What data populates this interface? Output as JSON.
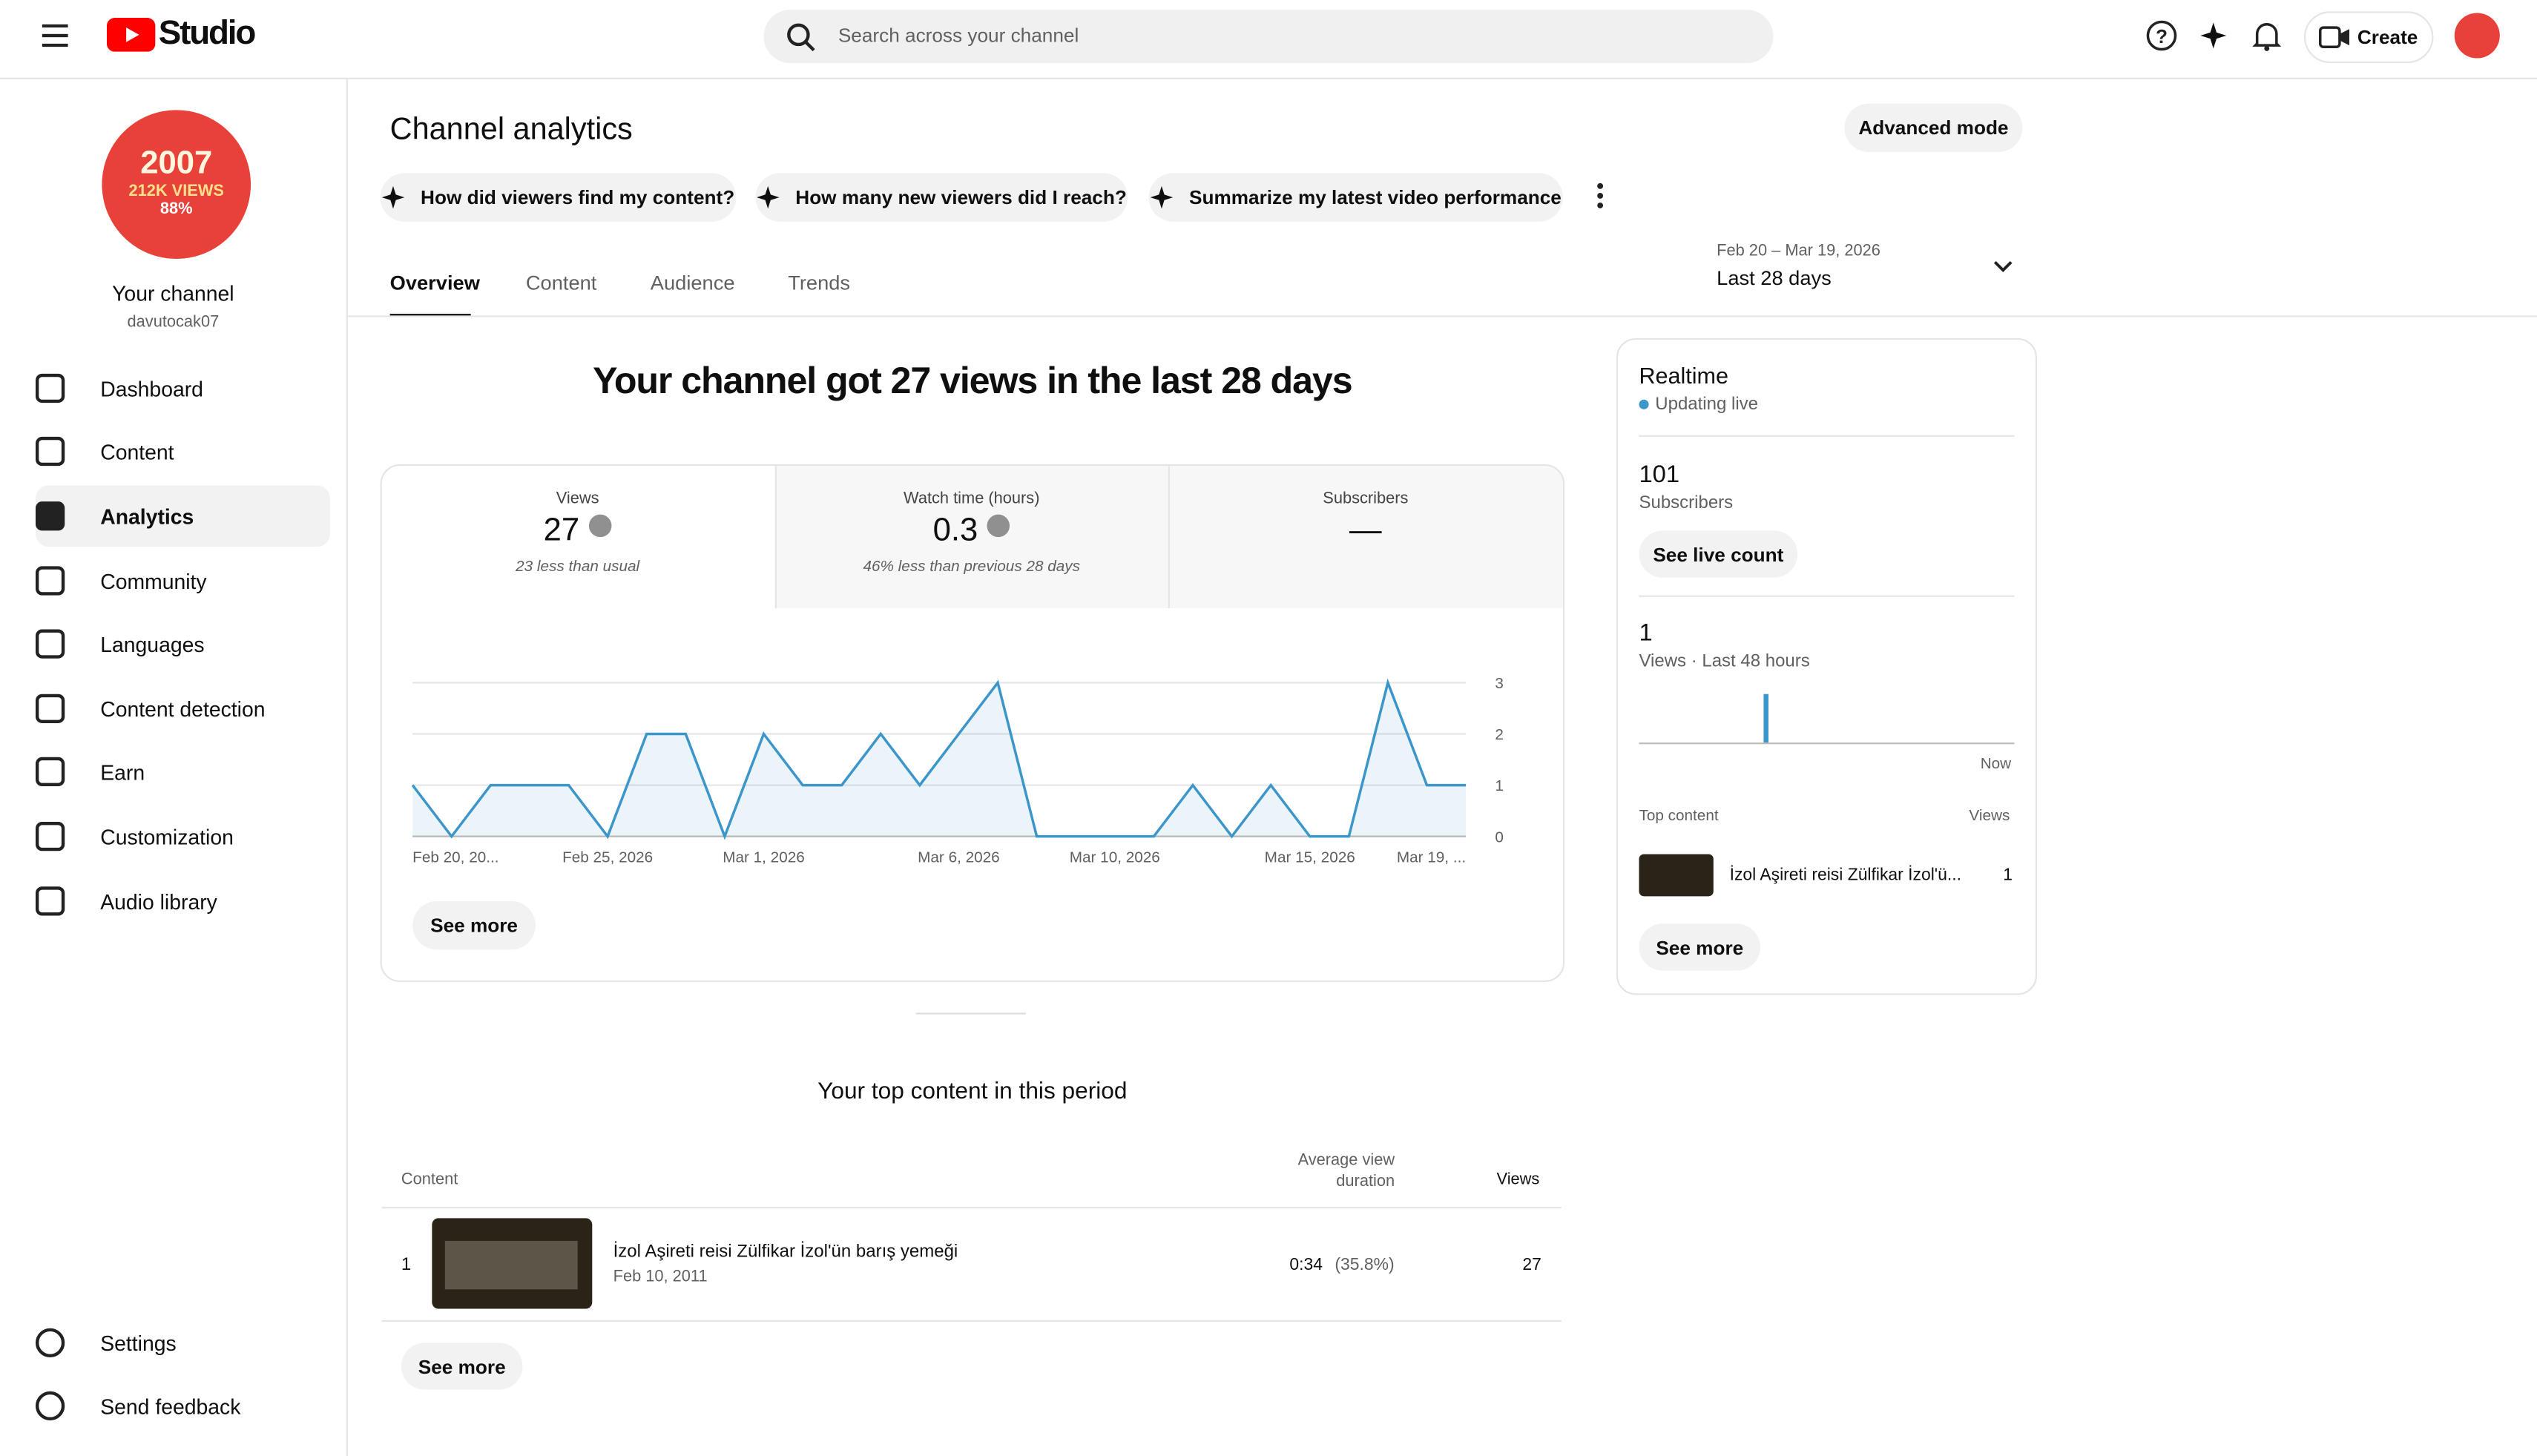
{
  "header": {
    "logo": "Studio",
    "search_placeholder": "Search across your channel",
    "create": "Create"
  },
  "channel": {
    "avatar_line1": "2007",
    "avatar_line2": "212K VIEWS",
    "avatar_line3": "88%",
    "name": "Your channel",
    "handle": "davutocak07"
  },
  "nav": [
    "Dashboard",
    "Content",
    "Analytics",
    "Community",
    "Languages",
    "Content detection",
    "Earn",
    "Customization",
    "Audio library"
  ],
  "nav_footer": [
    "Settings",
    "Send feedback"
  ],
  "page": {
    "title": "Channel analytics",
    "advanced": "Advanced mode",
    "prompts": [
      "How did viewers find my content?",
      "How many new viewers did I reach?",
      "Summarize my latest video performance"
    ],
    "tabs": [
      "Overview",
      "Content",
      "Audience",
      "Trends"
    ],
    "date_range": "Feb 20 – Mar 19, 2026",
    "period": "Last 28 days"
  },
  "summary": {
    "headline": "Your channel got 27 views in the last 28 days",
    "metrics": [
      {
        "label": "Views",
        "value": "27",
        "note": "23 less than usual"
      },
      {
        "label": "Watch time (hours)",
        "value": "0.3",
        "note": "46% less than previous 28 days"
      },
      {
        "label": "Subscribers",
        "value": "—"
      }
    ],
    "see_more": "See more"
  },
  "chart_data": {
    "type": "line",
    "categories": [
      "Feb 20, 20...",
      null,
      null,
      null,
      null,
      "Feb 25, 2026",
      null,
      null,
      null,
      "Mar 1, 2026",
      null,
      null,
      null,
      null,
      "Mar 6, 2026",
      null,
      null,
      null,
      "Mar 10, 2026",
      null,
      null,
      null,
      null,
      "Mar 15, 2026",
      null,
      null,
      null,
      "Mar 19, ..."
    ],
    "values": [
      1,
      0,
      1,
      1,
      1,
      0,
      2,
      2,
      0,
      2,
      1,
      1,
      2,
      1,
      2,
      3,
      0,
      0,
      0,
      0,
      1,
      0,
      1,
      0,
      0,
      3,
      1,
      1
    ],
    "color": "#3d96c9",
    "ylim": [
      0,
      3
    ],
    "yticks": [
      0,
      1,
      2,
      3
    ],
    "grid": true
  },
  "realtime": {
    "title": "Realtime",
    "status": "Updating live",
    "subscribers": "101",
    "subscribers_label": "Subscribers",
    "live_button": "See live count",
    "views": "1",
    "views_label": "Views · Last 48 hours",
    "now": "Now",
    "top_content_label": "Top content",
    "views_column": "Views",
    "item_title": "İzol Aşireti reisi Zülfikar İzol'ü...",
    "item_views": "1",
    "see_more": "See more"
  },
  "top_content": {
    "title": "Your top content in this period",
    "columns": [
      "Content",
      "Average view duration",
      "Views"
    ],
    "rows": [
      {
        "rank": "1",
        "title": "İzol Aşireti reisi Zülfikar İzol'ün barış yemeği",
        "date": "Feb 10, 2011",
        "duration": "0:34",
        "percent": "(35.8%)",
        "views": "27"
      }
    ],
    "see_more": "See more"
  }
}
